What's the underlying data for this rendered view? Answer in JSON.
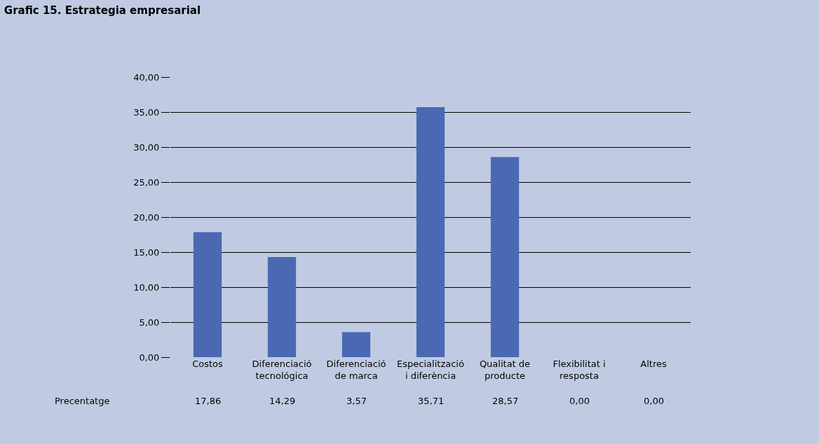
{
  "chart_data": {
    "type": "bar",
    "title": "Grafic 15. Estrategia empresarial",
    "categories": [
      "Costos",
      "Diferenciació\ntecnológica",
      "Diferenciació\nde marca",
      "Especialització\ni diferència",
      "Qualitat de\nproducte",
      "Flexibilitat i\nresposta",
      "Altres"
    ],
    "series": [
      {
        "name": "Precentatge",
        "color": "#4a69b2",
        "values": [
          17.86,
          14.29,
          3.57,
          35.71,
          28.57,
          0.0,
          0.0
        ],
        "value_labels": [
          "17,86",
          "14,29",
          "3,57",
          "35,71",
          "28,57",
          "0,00",
          "0,00"
        ]
      }
    ],
    "ylim": [
      0,
      40
    ],
    "yticks": [
      {
        "value": 0,
        "label": "0,00"
      },
      {
        "value": 5,
        "label": "5,00"
      },
      {
        "value": 10,
        "label": "10,00"
      },
      {
        "value": 15,
        "label": "15,00"
      },
      {
        "value": 20,
        "label": "20,00"
      },
      {
        "value": 25,
        "label": "25,00"
      },
      {
        "value": 30,
        "label": "30,00"
      },
      {
        "value": 35,
        "label": "35,00"
      },
      {
        "value": 40,
        "label": "40,00"
      }
    ],
    "grid": "y",
    "legend": false
  }
}
